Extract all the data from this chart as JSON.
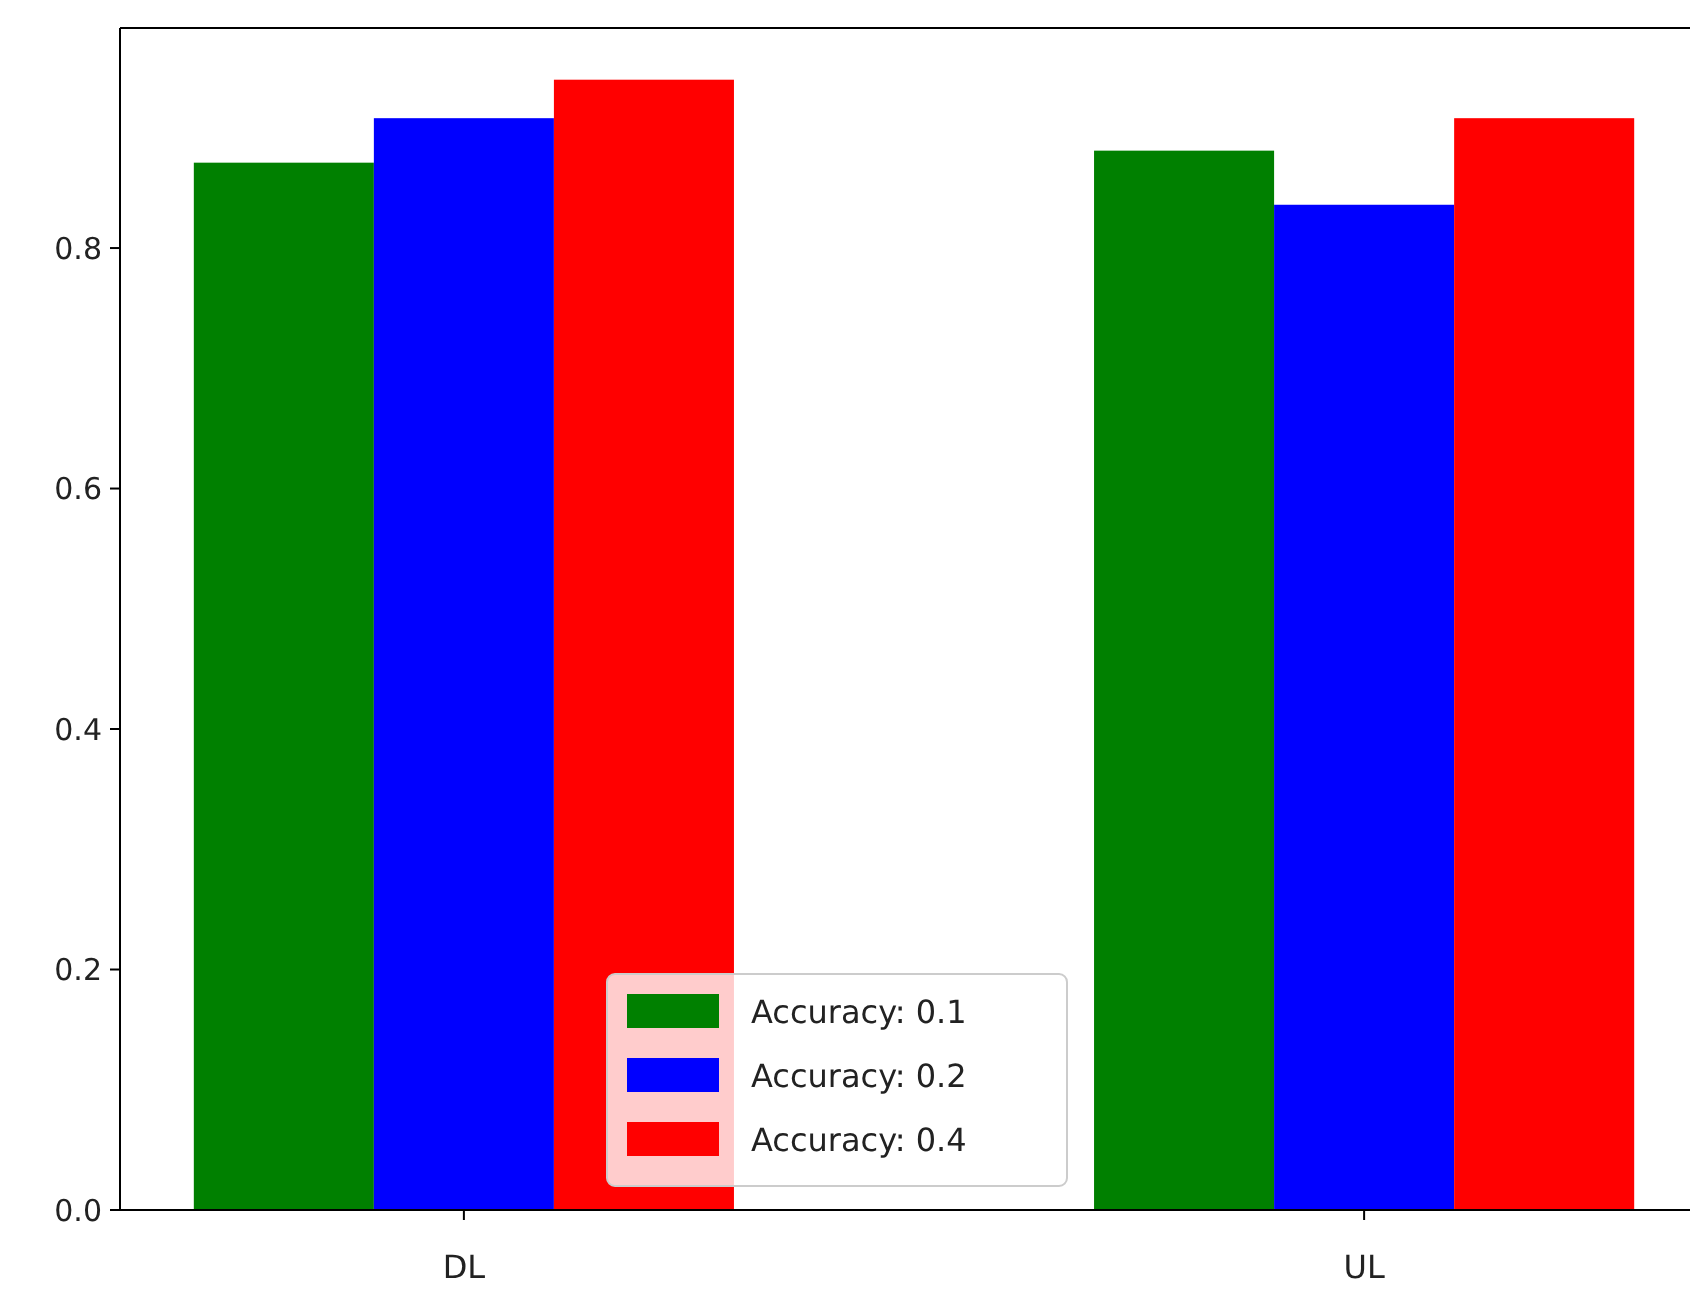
{
  "chart_data": {
    "type": "bar",
    "categories": [
      "DL",
      "UL"
    ],
    "series": [
      {
        "name": "Accuracy: 0.1",
        "color": "#008000",
        "values": [
          0.871,
          0.881
        ]
      },
      {
        "name": "Accuracy: 0.2",
        "color": "#0000ff",
        "values": [
          0.908,
          0.836
        ]
      },
      {
        "name": "Accuracy: 0.4",
        "color": "#ff0000",
        "values": [
          0.94,
          0.908
        ]
      }
    ],
    "ylim": [
      0,
      0.983
    ],
    "yticks": [
      {
        "value": 0,
        "label": "0.0"
      },
      {
        "value": 0.2,
        "label": "0.2"
      },
      {
        "value": 0.4,
        "label": "0.4"
      },
      {
        "value": 0.6,
        "label": "0.6"
      },
      {
        "value": 0.8,
        "label": "0.8"
      }
    ],
    "legend": "bottom"
  }
}
